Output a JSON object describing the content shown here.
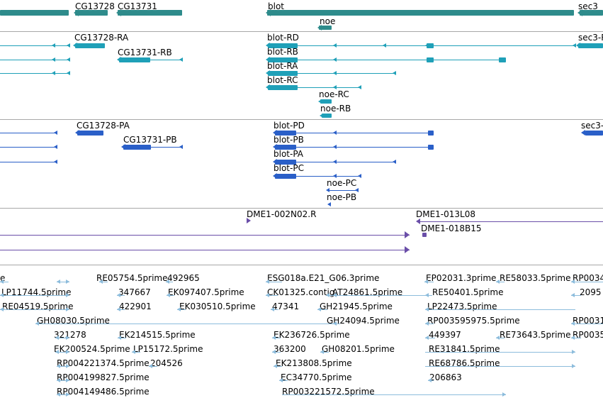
{
  "colors": {
    "gene": "#2e8b8b",
    "transcript": "#1fa0b8",
    "protein": "#2a5fc8",
    "clone": "#6a4ea8",
    "est": "#8cbcdc",
    "separator": "#a8a8a8"
  },
  "tracks": {
    "genes": [
      "CG13728",
      "CG13731",
      "blot",
      "sec3",
      "noe"
    ],
    "transcripts": [
      "CG13728-RA",
      "CG13731-RB",
      "blot-RD",
      "sec3-R",
      "blot-RB",
      "blot-RA",
      "blot-RC",
      "noe-RC",
      "noe-RB"
    ],
    "proteins": [
      "CG13728-PA",
      "CG13731-PB",
      "blot-PD",
      "sec3-",
      "blot-PB",
      "blot-PA",
      "blot-PC",
      "noe-PC",
      "noe-PB"
    ],
    "clones": [
      "DME1-002N02.R",
      "DME1-013L08",
      "DME1-018B15"
    ],
    "ests": [
      "e",
      "RE05754.5prime",
      "492965",
      "ESG018a.E21_G06.3prime",
      "EP02031.3prime",
      "RE58033.5prime",
      "RP0034",
      "LP11744.5prime",
      "347667",
      "EK097407.5prime",
      "CK01325.contig",
      "AT24861.5prime",
      "RE50401.5prime",
      "2095",
      "RE04519.5prime",
      "422901",
      "EK030510.5prime",
      "47341",
      "GH21945.5prime",
      "LP22473.5prime",
      "GH08030.5prime",
      "GH24094.5prime",
      "RP003595975.5prime",
      "RP0031",
      "321278",
      "EK214515.5prime",
      "EK236726.5prime",
      "449397",
      "RE73643.5prime",
      "RP0035",
      "EK200524.5prime",
      "LP15172.5prime",
      "363200",
      "GH08201.5prime",
      "RE31841.5prime",
      "RP004221374.5prime",
      "204526",
      "EK213808.5prime",
      "RE68786.5prime",
      "RP004199827.5prime",
      "EC34770.5prime",
      "206863",
      "RP004149486.5prime",
      "RP003221572.5prime"
    ]
  }
}
